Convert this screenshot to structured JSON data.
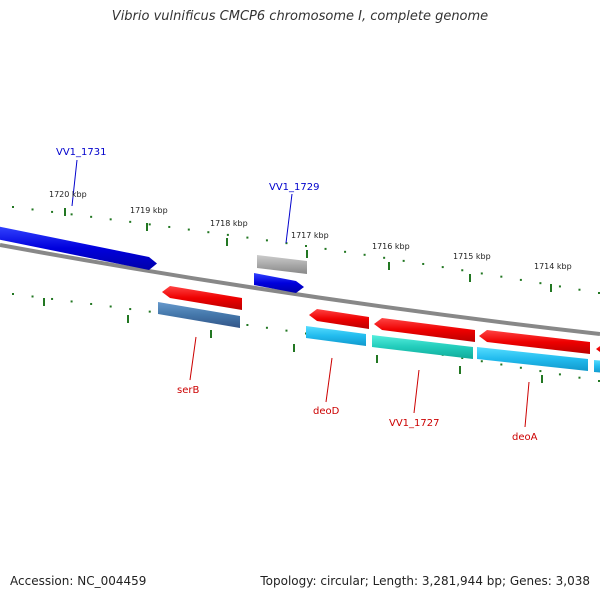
{
  "title": "Vibrio vulnificus CMCP6 chromosome I, complete genome",
  "footer": {
    "accession": "Accession: NC_004459",
    "summary": "Topology: circular; Length: 3,281,944 bp; Genes: 3,038"
  },
  "scale_labels": [
    "1720 kbp",
    "1719 kbp",
    "1718 kbp",
    "1717 kbp",
    "1716 kbp",
    "1715 kbp",
    "1714 kbp"
  ],
  "gene_labels": [
    {
      "text": "VV1_1731",
      "color": "#0000cc"
    },
    {
      "text": "VV1_1729",
      "color": "#0000cc"
    },
    {
      "text": "serB",
      "color": "#cc0000"
    },
    {
      "text": "deoD",
      "color": "#cc0000"
    },
    {
      "text": "VV1_1727",
      "color": "#cc0000"
    },
    {
      "text": "deoA",
      "color": "#cc0000"
    }
  ],
  "colors": {
    "backbone": "#888888",
    "scale_tick": "#227722",
    "forward_strand": "#0000dd",
    "reverse_strand": "#ee0000",
    "cds_cyan": "#22bbee",
    "cds_teal": "#22ccbb",
    "cds_steel": "#4477aa",
    "cds_gray": "#aaaaaa"
  }
}
